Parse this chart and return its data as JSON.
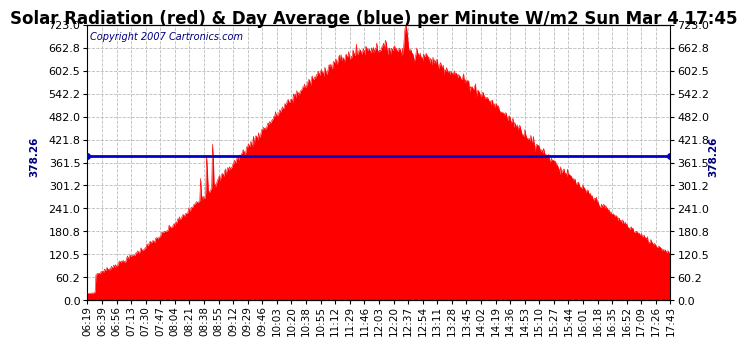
{
  "title": "Solar Radiation (red) & Day Average (blue) per Minute W/m2 Sun Mar 4 17:45",
  "copyright": "Copyright 2007 Cartronics.com",
  "average_value": 378.26,
  "y_max": 723.0,
  "y_min": 0.0,
  "y_ticks": [
    0.0,
    60.2,
    120.5,
    180.8,
    241.0,
    301.2,
    361.5,
    421.8,
    482.0,
    542.2,
    602.5,
    662.8,
    723.0
  ],
  "x_labels": [
    "06:19",
    "06:39",
    "06:56",
    "07:13",
    "07:30",
    "07:47",
    "08:04",
    "08:21",
    "08:38",
    "08:55",
    "09:12",
    "09:29",
    "09:46",
    "10:03",
    "10:20",
    "10:38",
    "10:55",
    "11:12",
    "11:29",
    "11:46",
    "12:03",
    "12:20",
    "12:37",
    "12:54",
    "13:11",
    "13:28",
    "13:45",
    "14:02",
    "14:19",
    "14:36",
    "14:53",
    "15:10",
    "15:27",
    "15:44",
    "16:01",
    "16:18",
    "16:35",
    "16:52",
    "17:09",
    "17:26",
    "17:43"
  ],
  "fill_color": "#FF0000",
  "line_color": "#FF0000",
  "avg_line_color": "#0000CC",
  "background_color": "#FFFFFF",
  "plot_bg_color": "#FFFFFF",
  "title_fontsize": 12,
  "tick_fontsize": 8,
  "copyright_fontsize": 7,
  "grid_color": "#BBBBBB",
  "title_color": "#000000",
  "label_text": "378.26",
  "peak_main": 662.0,
  "peak_spike": 723.0,
  "n_points": 686
}
